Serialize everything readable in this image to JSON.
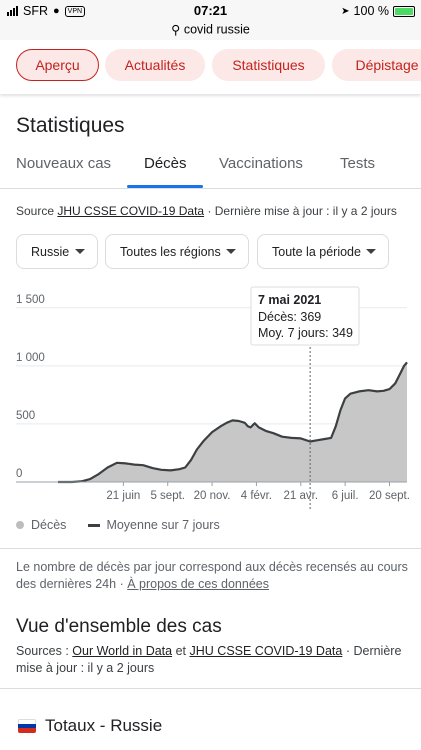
{
  "status_bar": {
    "carrier": "SFR",
    "vpn": "VPN",
    "time": "07:21",
    "battery": "100 %"
  },
  "url_bar": {
    "query": "covid russie"
  },
  "chips": [
    {
      "label": "Aperçu",
      "active": true
    },
    {
      "label": "Actualités",
      "active": false
    },
    {
      "label": "Statistiques",
      "active": false
    },
    {
      "label": "Dépistage",
      "active": false
    }
  ],
  "stats": {
    "title": "Statistiques",
    "tabs": [
      "Nouveaux cas",
      "Décès",
      "Vaccinations",
      "Tests"
    ],
    "selected_tab": "Décès",
    "source_prefix": "Source",
    "source_link": "JHU CSSE COVID-19 Data",
    "source_suffix": "· Dernière mise à jour : il y a 2 jours",
    "filters": [
      "Russie",
      "Toutes les régions",
      "Toute la période"
    ]
  },
  "chart_data": {
    "type": "area",
    "x_tick_labels": [
      "21 juin",
      "5 sept.",
      "20 nov.",
      "4 févr.",
      "21 avr.",
      "6 juil.",
      "20 sept."
    ],
    "x_tick_dates": [
      "2020-06-21",
      "2020-09-05",
      "2020-11-20",
      "2021-02-04",
      "2021-04-21",
      "2021-07-06",
      "2021-09-20"
    ],
    "y_ticks": [
      0,
      500,
      1000,
      1500
    ],
    "ylim": [
      0,
      1600
    ],
    "xlim": [
      "2020-03-01",
      "2021-10-20"
    ],
    "legend": [
      "Décès",
      "Moyenne sur 7 jours"
    ],
    "tooltip": {
      "date": "7 mai 2021",
      "deaths_label": "Décès: 369",
      "avg_label": "Moy. 7 jours: 349",
      "x": "2021-05-07"
    },
    "series": [
      {
        "name": "Moyenne sur 7 jours",
        "points": [
          [
            "2020-03-01",
            0
          ],
          [
            "2020-03-25",
            0
          ],
          [
            "2020-04-10",
            5
          ],
          [
            "2020-04-25",
            25
          ],
          [
            "2020-05-10",
            70
          ],
          [
            "2020-05-25",
            125
          ],
          [
            "2020-06-10",
            165
          ],
          [
            "2020-06-25",
            160
          ],
          [
            "2020-07-10",
            150
          ],
          [
            "2020-07-25",
            145
          ],
          [
            "2020-08-10",
            120
          ],
          [
            "2020-08-25",
            105
          ],
          [
            "2020-09-10",
            100
          ],
          [
            "2020-09-25",
            110
          ],
          [
            "2020-10-05",
            125
          ],
          [
            "2020-10-15",
            190
          ],
          [
            "2020-10-25",
            280
          ],
          [
            "2020-11-05",
            350
          ],
          [
            "2020-11-20",
            430
          ],
          [
            "2020-12-05",
            480
          ],
          [
            "2020-12-15",
            510
          ],
          [
            "2020-12-25",
            530
          ],
          [
            "2021-01-05",
            525
          ],
          [
            "2021-01-15",
            510
          ],
          [
            "2021-01-20",
            480
          ],
          [
            "2021-01-25",
            470
          ],
          [
            "2021-02-01",
            505
          ],
          [
            "2021-02-08",
            470
          ],
          [
            "2021-02-20",
            440
          ],
          [
            "2021-03-05",
            420
          ],
          [
            "2021-03-20",
            390
          ],
          [
            "2021-04-05",
            380
          ],
          [
            "2021-04-21",
            375
          ],
          [
            "2021-05-07",
            349
          ],
          [
            "2021-05-20",
            360
          ],
          [
            "2021-06-01",
            370
          ],
          [
            "2021-06-12",
            380
          ],
          [
            "2021-06-20",
            480
          ],
          [
            "2021-06-28",
            620
          ],
          [
            "2021-07-06",
            720
          ],
          [
            "2021-07-15",
            760
          ],
          [
            "2021-07-30",
            780
          ],
          [
            "2021-08-15",
            790
          ],
          [
            "2021-08-30",
            780
          ],
          [
            "2021-09-10",
            785
          ],
          [
            "2021-09-20",
            800
          ],
          [
            "2021-09-30",
            850
          ],
          [
            "2021-10-08",
            930
          ],
          [
            "2021-10-15",
            1000
          ],
          [
            "2021-10-20",
            1030
          ]
        ]
      }
    ]
  },
  "legend_dot_label": "Décès",
  "legend_line_label": "Moyenne sur 7 jours",
  "footnote": {
    "text": "Le nombre de décès par jour correspond aux décès recensés au cours des dernières 24h",
    "link": "À propos de ces données"
  },
  "overview": {
    "title": "Vue d'ensemble des cas",
    "sources_prefix": "Sources :",
    "link1": "Our World in Data",
    "and": "et",
    "link2": "JHU CSSE COVID-19 Data",
    "suffix": "· Dernière mise à jour : il y a 2 jours",
    "totals_label": "Totaux - Russie"
  },
  "colors": {
    "accent": "#c5221f",
    "chip_bg": "#fce8e6",
    "tab_underline": "#1a73e8",
    "area": "#bdbdbd",
    "line": "#3c4043"
  }
}
